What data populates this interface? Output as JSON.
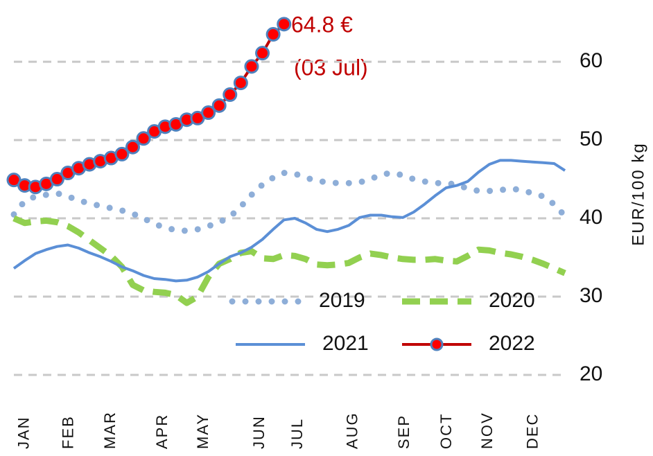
{
  "chart_data": {
    "type": "line",
    "y_label": "EUR/100 kg",
    "annotations": [
      "64.8 €",
      "(03 Jul)"
    ],
    "x": [
      1,
      2,
      3,
      4,
      5,
      6,
      7,
      8,
      9,
      10,
      11,
      12,
      13,
      14,
      15,
      16,
      17,
      18,
      19,
      20,
      21,
      22,
      23,
      24,
      25,
      26,
      27,
      28,
      29,
      30,
      31,
      32,
      33,
      34,
      35,
      36,
      37,
      38,
      39,
      40,
      41,
      42,
      43,
      44,
      45,
      46,
      47,
      48,
      49,
      50,
      51,
      52
    ],
    "xlim": [
      1,
      52
    ],
    "xticks": [
      {
        "value": 2,
        "label": "JAN"
      },
      {
        "value": 6.1,
        "label": "FEB"
      },
      {
        "value": 10,
        "label": "MAR"
      },
      {
        "value": 14.8,
        "label": "APR"
      },
      {
        "value": 18.6,
        "label": "MAY"
      },
      {
        "value": 23.8,
        "label": "JUN"
      },
      {
        "value": 27.3,
        "label": "JUL"
      },
      {
        "value": 32.4,
        "label": "AUG"
      },
      {
        "value": 37.2,
        "label": "SEP"
      },
      {
        "value": 41.1,
        "label": "OCT"
      },
      {
        "value": 44.9,
        "label": "NOV"
      },
      {
        "value": 49.1,
        "label": "DEC"
      }
    ],
    "ylim": [
      20,
      67
    ],
    "yticks": [
      20,
      30,
      40,
      50,
      60
    ],
    "grid": true,
    "series": [
      {
        "name": "2019",
        "color": "#8eaed8",
        "style": "dotted",
        "values": [
          40.5,
          42.2,
          42.8,
          43.0,
          43.2,
          42.8,
          42.3,
          41.9,
          41.6,
          41.3,
          41.0,
          40.6,
          40.0,
          39.3,
          38.8,
          38.5,
          38.4,
          38.6,
          39.0,
          39.5,
          40.2,
          41.5,
          43.0,
          44.3,
          45.2,
          45.8,
          45.7,
          45.2,
          44.8,
          44.6,
          44.5,
          44.5,
          44.6,
          45.0,
          45.6,
          45.8,
          45.5,
          45.0,
          44.7,
          44.5,
          44.5,
          44.3,
          43.8,
          43.5,
          43.5,
          43.6,
          43.8,
          43.6,
          43.2,
          42.8,
          41.8,
          40.3
        ]
      },
      {
        "name": "2020",
        "color": "#92d050",
        "style": "dashed",
        "values": [
          40.0,
          39.4,
          39.6,
          39.7,
          39.5,
          39.0,
          38.2,
          37.2,
          36.2,
          35.2,
          33.8,
          31.5,
          30.8,
          30.6,
          30.5,
          30.2,
          29.2,
          30.0,
          32.5,
          34.2,
          34.8,
          35.6,
          35.8,
          34.9,
          34.8,
          35.3,
          35.2,
          34.8,
          34.1,
          34.0,
          34.1,
          34.3,
          35.0,
          35.5,
          35.3,
          35.0,
          34.8,
          34.7,
          34.7,
          34.8,
          34.6,
          34.5,
          35.2,
          36.0,
          35.9,
          35.6,
          35.4,
          35.1,
          34.7,
          34.2,
          33.6,
          33.0
        ]
      },
      {
        "name": "2021",
        "color": "#5b8fd6",
        "style": "solid",
        "values": [
          33.6,
          34.6,
          35.5,
          36.0,
          36.4,
          36.6,
          36.2,
          35.6,
          35.1,
          34.5,
          33.8,
          33.3,
          32.7,
          32.3,
          32.2,
          32.0,
          32.1,
          32.5,
          33.2,
          34.2,
          35.1,
          35.6,
          36.3,
          37.3,
          38.6,
          39.8,
          40.0,
          39.4,
          38.6,
          38.3,
          38.6,
          39.1,
          40.1,
          40.4,
          40.4,
          40.2,
          40.1,
          40.8,
          41.8,
          42.9,
          43.9,
          44.2,
          44.7,
          45.9,
          46.9,
          47.4,
          47.4,
          47.3,
          47.2,
          47.1,
          47.0,
          46.1
        ]
      },
      {
        "name": "2022",
        "color": "#c00000",
        "marker_color": "#ff0000",
        "marker_edge": "#4f81bd",
        "style": "markers",
        "values": [
          44.9,
          44.2,
          44.0,
          44.4,
          45.0,
          45.8,
          46.4,
          46.9,
          47.3,
          47.7,
          48.2,
          49.1,
          50.2,
          51.1,
          51.7,
          52.0,
          52.6,
          52.8,
          53.5,
          54.4,
          55.8,
          57.3,
          59.4,
          61.1,
          63.5,
          64.8,
          null,
          null,
          null,
          null,
          null,
          null,
          null,
          null,
          null,
          null,
          null,
          null,
          null,
          null,
          null,
          null,
          null,
          null,
          null,
          null,
          null,
          null,
          null,
          null,
          null,
          null
        ]
      }
    ]
  }
}
